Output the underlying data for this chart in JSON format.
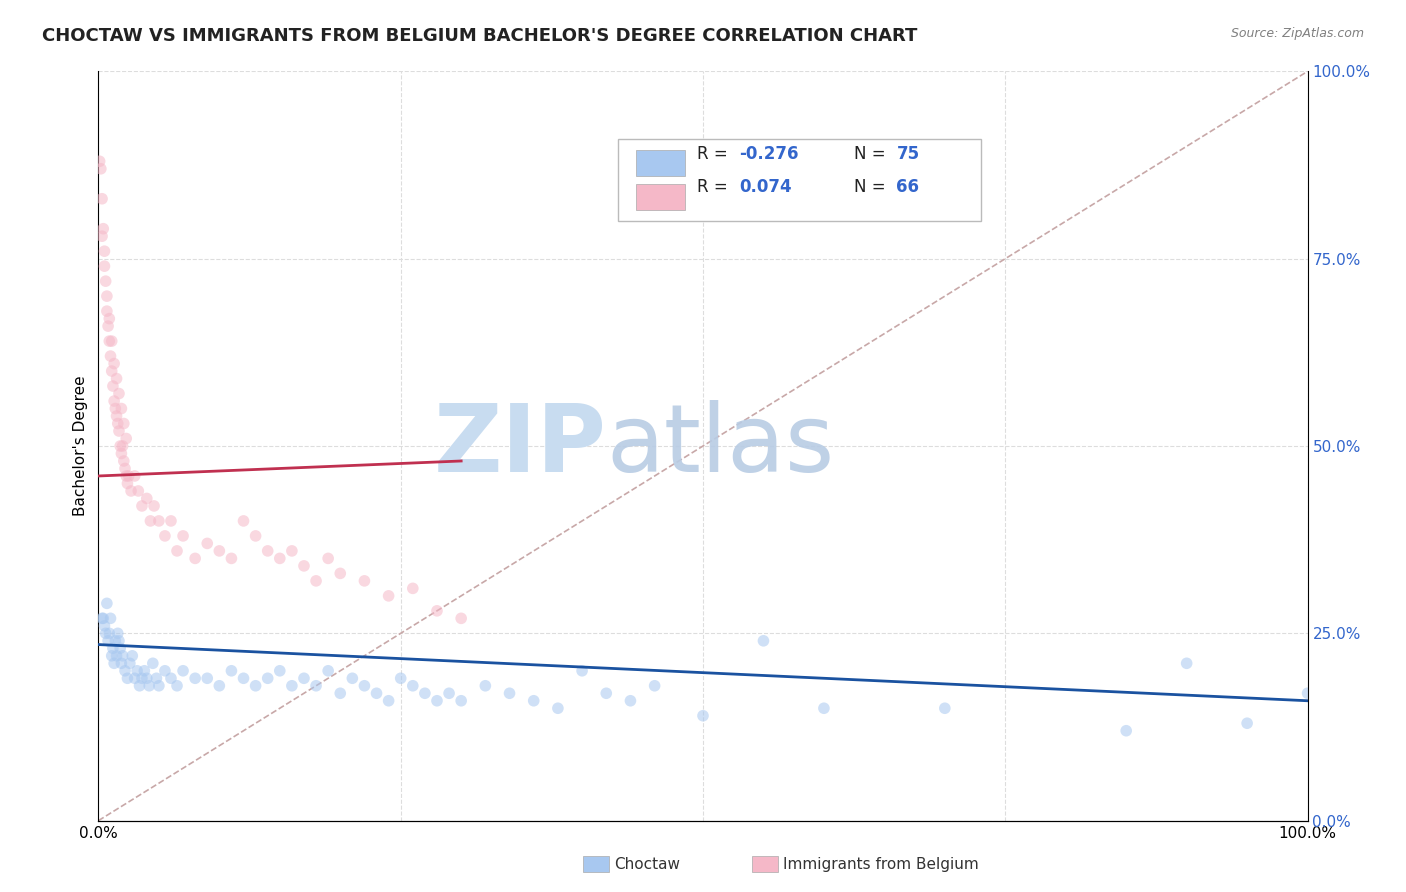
{
  "title": "CHOCTAW VS IMMIGRANTS FROM BELGIUM BACHELOR'S DEGREE CORRELATION CHART",
  "source": "Source: ZipAtlas.com",
  "ylabel": "Bachelor's Degree",
  "xlim": [
    0.0,
    1.0
  ],
  "ylim": [
    0.0,
    1.0
  ],
  "xticks": [
    0.0,
    0.25,
    0.5,
    0.75,
    1.0
  ],
  "yticks": [
    0.0,
    0.25,
    0.5,
    0.75,
    1.0
  ],
  "xticklabels": [
    "0.0%",
    "",
    "",
    "",
    "100.0%"
  ],
  "yticklabels_right": [
    "0.0%",
    "25.0%",
    "50.0%",
    "75.0%",
    "100.0%"
  ],
  "choctaw_color": "#A8C8F0",
  "belgium_color": "#F5B8C8",
  "choctaw_line_color": "#1A52A0",
  "belgium_line_color": "#C03050",
  "ref_line_color": "#C8A8A8",
  "choctaw_label": "Choctaw",
  "belgium_label": "Immigrants from Belgium",
  "watermark_zip": "ZIP",
  "watermark_atlas": "atlas",
  "legend_r1_prefix": "R = ",
  "legend_r1_val": "-0.276",
  "legend_n1_prefix": "N = ",
  "legend_n1_val": "75",
  "legend_r2_prefix": "R =  ",
  "legend_r2_val": "0.074",
  "legend_n2_prefix": "N = ",
  "legend_n2_val": "66",
  "choctaw_x": [
    0.004,
    0.005,
    0.006,
    0.007,
    0.008,
    0.009,
    0.01,
    0.011,
    0.012,
    0.013,
    0.014,
    0.015,
    0.016,
    0.017,
    0.018,
    0.019,
    0.02,
    0.022,
    0.024,
    0.026,
    0.028,
    0.03,
    0.032,
    0.034,
    0.036,
    0.038,
    0.04,
    0.042,
    0.045,
    0.048,
    0.05,
    0.055,
    0.06,
    0.065,
    0.07,
    0.08,
    0.09,
    0.1,
    0.11,
    0.12,
    0.13,
    0.14,
    0.15,
    0.16,
    0.17,
    0.18,
    0.19,
    0.2,
    0.21,
    0.22,
    0.23,
    0.24,
    0.25,
    0.26,
    0.27,
    0.28,
    0.29,
    0.3,
    0.32,
    0.34,
    0.36,
    0.38,
    0.4,
    0.42,
    0.44,
    0.46,
    0.5,
    0.55,
    0.6,
    0.7,
    0.85,
    0.9,
    0.95,
    1.0,
    0.003
  ],
  "choctaw_y": [
    0.27,
    0.26,
    0.25,
    0.29,
    0.24,
    0.25,
    0.27,
    0.22,
    0.23,
    0.21,
    0.24,
    0.22,
    0.25,
    0.24,
    0.23,
    0.21,
    0.22,
    0.2,
    0.19,
    0.21,
    0.22,
    0.19,
    0.2,
    0.18,
    0.19,
    0.2,
    0.19,
    0.18,
    0.21,
    0.19,
    0.18,
    0.2,
    0.19,
    0.18,
    0.2,
    0.19,
    0.19,
    0.18,
    0.2,
    0.19,
    0.18,
    0.19,
    0.2,
    0.18,
    0.19,
    0.18,
    0.2,
    0.17,
    0.19,
    0.18,
    0.17,
    0.16,
    0.19,
    0.18,
    0.17,
    0.16,
    0.17,
    0.16,
    0.18,
    0.17,
    0.16,
    0.15,
    0.2,
    0.17,
    0.16,
    0.18,
    0.14,
    0.24,
    0.15,
    0.15,
    0.12,
    0.21,
    0.13,
    0.17,
    0.27
  ],
  "belgium_x": [
    0.001,
    0.002,
    0.003,
    0.004,
    0.005,
    0.006,
    0.007,
    0.008,
    0.009,
    0.01,
    0.011,
    0.012,
    0.013,
    0.014,
    0.015,
    0.016,
    0.017,
    0.018,
    0.019,
    0.02,
    0.021,
    0.022,
    0.023,
    0.024,
    0.025,
    0.027,
    0.03,
    0.033,
    0.036,
    0.04,
    0.043,
    0.046,
    0.05,
    0.055,
    0.06,
    0.065,
    0.07,
    0.08,
    0.09,
    0.1,
    0.11,
    0.12,
    0.13,
    0.14,
    0.15,
    0.16,
    0.17,
    0.18,
    0.19,
    0.2,
    0.22,
    0.24,
    0.26,
    0.28,
    0.3,
    0.003,
    0.005,
    0.007,
    0.009,
    0.011,
    0.013,
    0.015,
    0.017,
    0.019,
    0.021,
    0.023
  ],
  "belgium_y": [
    0.88,
    0.87,
    0.83,
    0.79,
    0.76,
    0.72,
    0.68,
    0.66,
    0.64,
    0.62,
    0.6,
    0.58,
    0.56,
    0.55,
    0.54,
    0.53,
    0.52,
    0.5,
    0.49,
    0.5,
    0.48,
    0.47,
    0.46,
    0.45,
    0.46,
    0.44,
    0.46,
    0.44,
    0.42,
    0.43,
    0.4,
    0.42,
    0.4,
    0.38,
    0.4,
    0.36,
    0.38,
    0.35,
    0.37,
    0.36,
    0.35,
    0.4,
    0.38,
    0.36,
    0.35,
    0.36,
    0.34,
    0.32,
    0.35,
    0.33,
    0.32,
    0.3,
    0.31,
    0.28,
    0.27,
    0.78,
    0.74,
    0.7,
    0.67,
    0.64,
    0.61,
    0.59,
    0.57,
    0.55,
    0.53,
    0.51
  ],
  "choctaw_trend_x": [
    0.0,
    1.0
  ],
  "choctaw_trend_y": [
    0.235,
    0.16
  ],
  "belgium_trend_x": [
    0.0,
    0.3
  ],
  "belgium_trend_y": [
    0.46,
    0.48
  ],
  "background_color": "#FFFFFF",
  "grid_color": "#DDDDDD",
  "title_fontsize": 13,
  "label_fontsize": 11,
  "tick_fontsize": 11,
  "marker_size": 70,
  "marker_alpha": 0.55,
  "line_width": 2.0
}
